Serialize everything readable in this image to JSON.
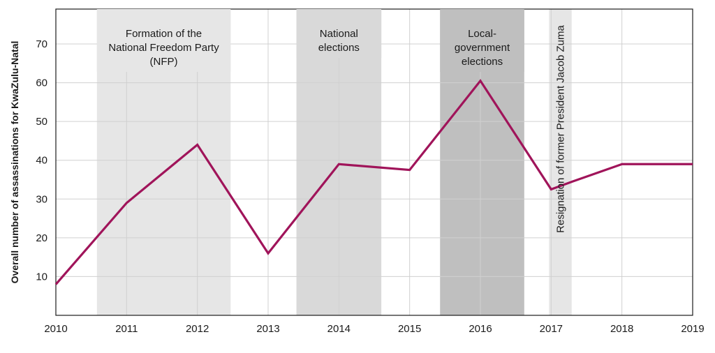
{
  "chart_data": {
    "type": "line",
    "title": "",
    "xlabel": "",
    "ylabel": "Overall number of assassinations for KwaZulu-Natal",
    "x": [
      2010,
      2011,
      2012,
      2013,
      2014,
      2015,
      2016,
      2017,
      2018,
      2019
    ],
    "series": [
      {
        "name": "Assassinations",
        "color": "#a0145a",
        "points": [
          {
            "x": 2010.0,
            "y": 8
          },
          {
            "x": 2011.0,
            "y": 29
          },
          {
            "x": 2012.0,
            "y": 44
          },
          {
            "x": 2013.0,
            "y": 16
          },
          {
            "x": 2014.0,
            "y": 39
          },
          {
            "x": 2015.0,
            "y": 37.5
          },
          {
            "x": 2016.0,
            "y": 60.5
          },
          {
            "x": 2017.0,
            "y": 32.5
          },
          {
            "x": 2017.3,
            "y": 34.5
          },
          {
            "x": 2018.0,
            "y": 39
          },
          {
            "x": 2019.0,
            "y": 39
          }
        ]
      }
    ],
    "xlim": [
      2010,
      2019
    ],
    "ylim": [
      0,
      79
    ],
    "yticks": [
      10,
      20,
      30,
      40,
      50,
      60,
      70
    ],
    "xticks": [
      2010,
      2011,
      2012,
      2013,
      2014,
      2015,
      2016,
      2017,
      2018,
      2019
    ],
    "grid": true,
    "annotations": [
      {
        "id": "nfp",
        "lines": [
          "Formation of the",
          "National Freedom Party",
          "(NFP)"
        ],
        "x_start": 2010.58,
        "x_end": 2012.47,
        "color": "#e6e6e6",
        "orientation": "horizontal"
      },
      {
        "id": "national",
        "lines": [
          "National",
          "elections"
        ],
        "x_start": 2013.4,
        "x_end": 2014.6,
        "color": "#d9d9d9",
        "orientation": "horizontal"
      },
      {
        "id": "local",
        "lines": [
          "Local-",
          "government",
          "elections"
        ],
        "x_start": 2015.43,
        "x_end": 2016.62,
        "color": "#bfbfbf",
        "orientation": "horizontal"
      },
      {
        "id": "zuma",
        "lines": [
          "Resignation of former President Jacob Zuma"
        ],
        "x_start": 2016.97,
        "x_end": 2017.29,
        "color": "#e6e6e6",
        "orientation": "vertical"
      }
    ]
  }
}
